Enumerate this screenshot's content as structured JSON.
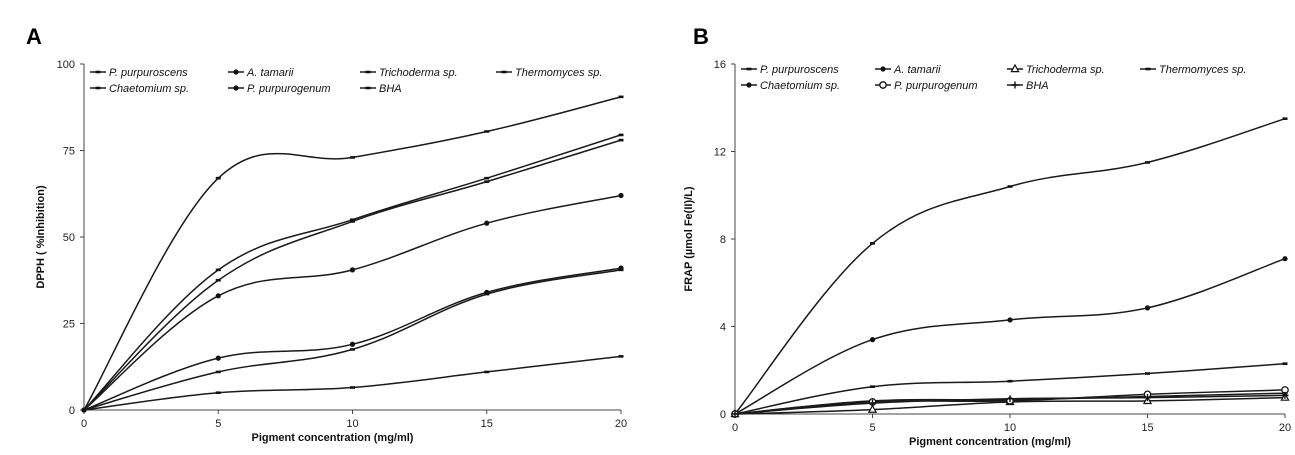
{
  "chart_data": [
    {
      "type": "line",
      "panel_label": "A",
      "xlabel": "Pigment concentration (mg/ml)",
      "ylabel": "DPPH ( %Inhibition)",
      "x": [
        0,
        5,
        10,
        15,
        20
      ],
      "xlim": [
        0,
        20
      ],
      "ylim": [
        0,
        100
      ],
      "yticks": [
        0,
        25,
        50,
        75,
        100
      ],
      "grid": false,
      "legend_position": "top",
      "series": [
        {
          "name": "P. purpuroscens",
          "marker": "dash",
          "values": [
            0,
            5,
            6.5,
            11,
            15.5
          ]
        },
        {
          "name": "A. tamarii",
          "marker": "dot",
          "values": [
            0,
            33,
            40.5,
            54,
            62
          ]
        },
        {
          "name": "Trichoderma sp.",
          "marker": "dash",
          "values": [
            0,
            11,
            17.5,
            33.5,
            40.5
          ]
        },
        {
          "name": "Thermomyces sp.",
          "marker": "dash",
          "values": [
            0,
            40.5,
            55,
            67,
            79.5
          ]
        },
        {
          "name": "Chaetomium sp.",
          "marker": "dash",
          "values": [
            0,
            37.5,
            54.5,
            66,
            78
          ]
        },
        {
          "name": "P. purpurogenum",
          "marker": "dot",
          "values": [
            0,
            15,
            19,
            34,
            41
          ]
        },
        {
          "name": "BHA",
          "marker": "dash",
          "values": [
            0,
            67,
            73,
            80.5,
            90.5
          ]
        }
      ]
    },
    {
      "type": "line",
      "panel_label": "B",
      "xlabel": "Pigment concentration (mg/ml)",
      "ylabel": "FRAP (µmol Fe(II)/L)",
      "x": [
        0,
        5,
        10,
        15,
        20
      ],
      "xlim": [
        0,
        20
      ],
      "ylim": [
        0,
        16
      ],
      "yticks": [
        0,
        4,
        8,
        12,
        16
      ],
      "grid": false,
      "legend_position": "top",
      "series": [
        {
          "name": "P. purpuroscens",
          "marker": "dash",
          "values": [
            0,
            7.8,
            10.4,
            11.5,
            13.5
          ]
        },
        {
          "name": "A. tamarii",
          "marker": "dot",
          "values": [
            0,
            0.6,
            0.65,
            0.8,
            0.95
          ]
        },
        {
          "name": "Trichoderma sp.",
          "marker": "triangle",
          "values": [
            0,
            0.2,
            0.55,
            0.6,
            0.75
          ]
        },
        {
          "name": "Thermomyces sp.",
          "marker": "dash",
          "values": [
            0,
            1.25,
            1.5,
            1.85,
            2.3
          ]
        },
        {
          "name": "Chaetomium sp.",
          "marker": "dot",
          "values": [
            0,
            3.4,
            4.3,
            4.85,
            7.1
          ]
        },
        {
          "name": "P. purpurogenum",
          "marker": "circle",
          "values": [
            0,
            0.55,
            0.6,
            0.9,
            1.1
          ]
        },
        {
          "name": "BHA",
          "marker": "plus",
          "values": [
            0,
            0.5,
            0.7,
            0.75,
            0.85
          ]
        }
      ]
    }
  ]
}
